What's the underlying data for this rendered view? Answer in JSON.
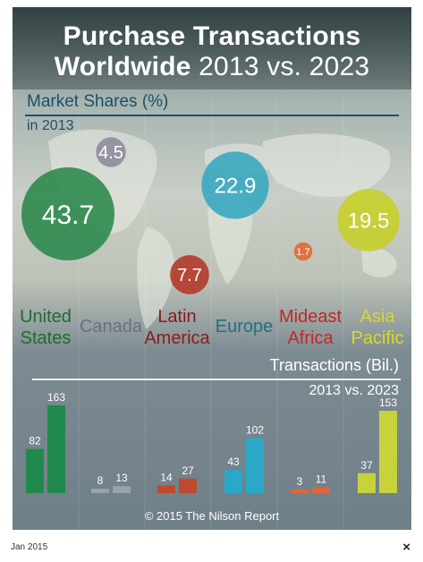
{
  "header": {
    "title_line1": "Purchase Transactions",
    "title_line2_bold": "Worldwide",
    "title_line2_rest": " 2013 vs. 2023"
  },
  "shares": {
    "title": "Market Shares (%)",
    "year": "in 2013"
  },
  "transactions": {
    "title": "Transactions (Bil.)",
    "years": "2013 vs. 2023"
  },
  "copyright": "© 2015 The Nilson Report",
  "footer": {
    "date": "Jan 2015",
    "close": "×"
  },
  "chart_data": [
    {
      "type": "bubble",
      "title": "Market Shares (%)",
      "subtitle": "in 2013",
      "categories": [
        {
          "line1": "United",
          "line2": "States"
        },
        {
          "line1": "Canada",
          "line2": ""
        },
        {
          "line1": "Latin",
          "line2": "America"
        },
        {
          "line1": "Europe",
          "line2": ""
        },
        {
          "line1": "Mideast",
          "line2": "Africa"
        },
        {
          "line1": "Asia",
          "line2": "Pacific"
        }
      ],
      "values": [
        43.7,
        4.5,
        7.7,
        22.9,
        1.7,
        19.5
      ],
      "labels": [
        "43.7",
        "4.5",
        "7.7",
        "22.9",
        "1.7",
        "19.5"
      ],
      "colors": [
        "#2f8a4e",
        "#8d8d9a",
        "#b23a2a",
        "#3aa9c0",
        "#e06a32",
        "#c6cf2a"
      ],
      "label_colors": [
        "#1e6b2e",
        "#6e6e80",
        "#8a1c1c",
        "#1f6f86",
        "#c72525",
        "#d9d92a"
      ]
    },
    {
      "type": "bar",
      "title": "Transactions (Bil.)",
      "subtitle": "2013 vs. 2023",
      "categories": [
        "United States",
        "Canada",
        "Latin America",
        "Europe",
        "Mideast Africa",
        "Asia Pacific"
      ],
      "series": [
        {
          "name": "2013",
          "values": [
            82,
            8,
            14,
            43,
            3,
            37
          ]
        },
        {
          "name": "2023",
          "values": [
            163,
            13,
            27,
            102,
            11,
            153
          ]
        }
      ],
      "ylim": [
        0,
        163
      ],
      "colors": [
        "#1f8a4c",
        "#9aa2ac",
        "#c0492e",
        "#2aa8c8",
        "#e3643a",
        "#c8d23a"
      ]
    }
  ]
}
